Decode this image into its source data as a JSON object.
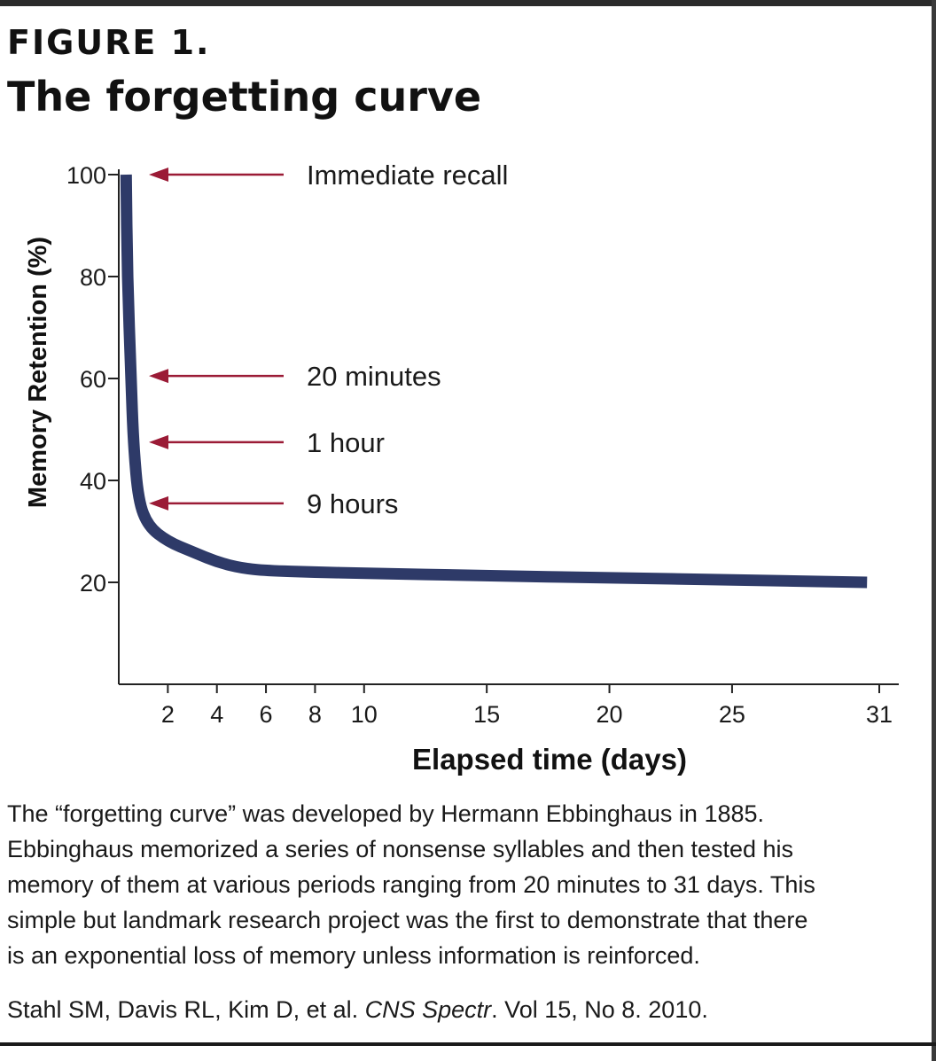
{
  "figure": {
    "label": "FIGURE 1.",
    "title": "The forgetting curve"
  },
  "chart_data": {
    "type": "line",
    "xlabel": "Elapsed time (days)",
    "ylabel": "Memory Retention (%)",
    "xlim": [
      0,
      31
    ],
    "ylim": [
      0,
      100
    ],
    "x_ticks": [
      2,
      4,
      6,
      8,
      10,
      15,
      20,
      25,
      31
    ],
    "y_ticks": [
      20,
      40,
      60,
      80,
      100
    ],
    "series": [
      {
        "color": "#2e3a68",
        "x": [
          0.3,
          0.35,
          0.5,
          0.6,
          0.8,
          1.2,
          2,
          3,
          4,
          5,
          6,
          8,
          10,
          15,
          20,
          25,
          30.5
        ],
        "y": [
          100,
          80,
          60,
          47,
          36,
          31,
          28,
          26,
          24,
          22.8,
          22.3,
          22,
          21.8,
          21.3,
          20.9,
          20.5,
          20
        ]
      }
    ],
    "annotations": [
      {
        "text": "Immediate recall",
        "y": 100
      },
      {
        "text": "20 minutes",
        "y": 60.5
      },
      {
        "text": "1 hour",
        "y": 47.5
      },
      {
        "text": "9 hours",
        "y": 35.5
      }
    ],
    "arrow_color": "#9b1b36"
  },
  "caption": {
    "lines": [
      "The “forgetting curve” was developed by Hermann Ebbinghaus in 1885.",
      "Ebbinghaus memorized a series of nonsense syllables and then tested his",
      "memory of them at various periods ranging from 20 minutes to 31 days.  This",
      "simple but landmark research project was the first to demonstrate that there",
      "is an exponential loss of memory unless information is reinforced."
    ]
  },
  "citation": {
    "authors": "Stahl SM, Davis RL, Kim D, et al. ",
    "journal": "CNS Spectr",
    "details": ". Vol 15, No 8. 2010."
  }
}
